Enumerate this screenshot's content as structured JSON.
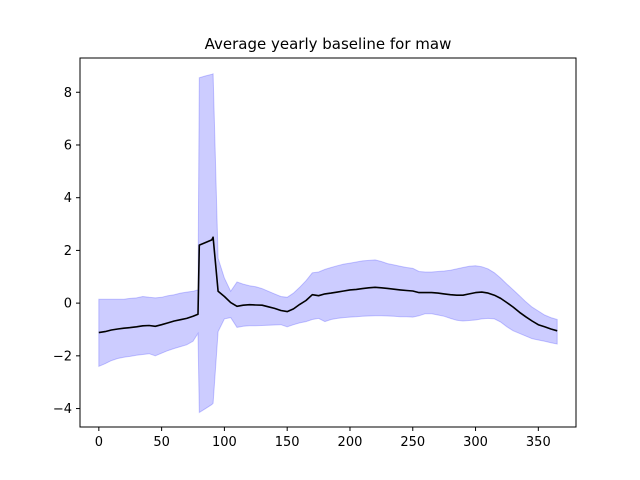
{
  "chart_data": {
    "type": "area",
    "title": "Average yearly baseline for maw",
    "xlabel": "",
    "ylabel": "",
    "xlim": [
      -15,
      380
    ],
    "ylim": [
      -4.7,
      9.3
    ],
    "xticks": [
      0,
      50,
      100,
      150,
      200,
      250,
      300,
      350
    ],
    "yticks": [
      -4,
      -2,
      0,
      2,
      4,
      6,
      8
    ],
    "grid": false,
    "legend": "none",
    "series": [
      {
        "kind": "line",
        "color": "#000000",
        "x": [
          0,
          5,
          10,
          15,
          20,
          25,
          30,
          35,
          40,
          45,
          50,
          55,
          60,
          65,
          70,
          75,
          79,
          80,
          85,
          90,
          91,
          95,
          100,
          105,
          110,
          115,
          120,
          125,
          130,
          135,
          140,
          145,
          150,
          155,
          160,
          165,
          170,
          175,
          180,
          185,
          190,
          195,
          200,
          205,
          210,
          215,
          220,
          225,
          230,
          235,
          240,
          245,
          250,
          255,
          260,
          265,
          270,
          275,
          280,
          285,
          290,
          295,
          300,
          305,
          310,
          315,
          320,
          325,
          330,
          335,
          340,
          345,
          350,
          355,
          360,
          365
        ],
        "y": [
          -1.12,
          -1.08,
          -1.02,
          -0.98,
          -0.95,
          -0.93,
          -0.9,
          -0.86,
          -0.85,
          -0.88,
          -0.82,
          -0.75,
          -0.68,
          -0.63,
          -0.58,
          -0.5,
          -0.42,
          2.2,
          2.3,
          2.4,
          2.5,
          0.45,
          0.25,
          0.02,
          -0.12,
          -0.08,
          -0.06,
          -0.07,
          -0.08,
          -0.14,
          -0.2,
          -0.28,
          -0.32,
          -0.22,
          -0.05,
          0.1,
          0.32,
          0.28,
          0.35,
          0.38,
          0.42,
          0.46,
          0.5,
          0.52,
          0.55,
          0.58,
          0.6,
          0.58,
          0.56,
          0.53,
          0.5,
          0.48,
          0.46,
          0.4,
          0.4,
          0.4,
          0.38,
          0.35,
          0.32,
          0.3,
          0.3,
          0.35,
          0.4,
          0.42,
          0.38,
          0.3,
          0.18,
          0.02,
          -0.15,
          -0.35,
          -0.52,
          -0.68,
          -0.82,
          -0.9,
          -0.98,
          -1.05
        ]
      },
      {
        "kind": "band",
        "color": "#0000ff",
        "opacity": 0.2,
        "x": [
          0,
          5,
          10,
          15,
          20,
          25,
          30,
          35,
          40,
          45,
          50,
          55,
          60,
          65,
          70,
          75,
          79,
          80,
          85,
          90,
          91,
          95,
          100,
          105,
          110,
          115,
          120,
          125,
          130,
          135,
          140,
          145,
          150,
          155,
          160,
          165,
          170,
          175,
          180,
          185,
          190,
          195,
          200,
          205,
          210,
          215,
          220,
          225,
          230,
          235,
          240,
          245,
          250,
          255,
          260,
          265,
          270,
          275,
          280,
          285,
          290,
          295,
          300,
          305,
          310,
          315,
          320,
          325,
          330,
          335,
          340,
          345,
          350,
          355,
          360,
          365
        ],
        "upper": [
          0.15,
          0.15,
          0.15,
          0.15,
          0.15,
          0.18,
          0.2,
          0.25,
          0.22,
          0.2,
          0.22,
          0.28,
          0.32,
          0.38,
          0.42,
          0.45,
          0.5,
          8.55,
          8.62,
          8.68,
          8.7,
          1.7,
          0.95,
          0.45,
          0.8,
          0.72,
          0.66,
          0.62,
          0.55,
          0.45,
          0.35,
          0.25,
          0.22,
          0.38,
          0.6,
          0.85,
          1.15,
          1.18,
          1.28,
          1.35,
          1.42,
          1.48,
          1.52,
          1.56,
          1.6,
          1.62,
          1.64,
          1.58,
          1.5,
          1.45,
          1.4,
          1.35,
          1.32,
          1.2,
          1.18,
          1.18,
          1.2,
          1.22,
          1.25,
          1.3,
          1.35,
          1.4,
          1.42,
          1.38,
          1.3,
          1.15,
          0.95,
          0.72,
          0.5,
          0.28,
          0.05,
          -0.15,
          -0.3,
          -0.45,
          -0.55,
          -0.62
        ],
        "lower": [
          -2.4,
          -2.3,
          -2.18,
          -2.1,
          -2.05,
          -2.02,
          -1.98,
          -1.95,
          -1.92,
          -2.0,
          -1.9,
          -1.8,
          -1.72,
          -1.65,
          -1.58,
          -1.45,
          -1.15,
          -4.15,
          -4.0,
          -3.85,
          -3.8,
          -1.08,
          -0.6,
          -0.55,
          -0.92,
          -0.88,
          -0.86,
          -0.86,
          -0.85,
          -0.84,
          -0.83,
          -0.82,
          -0.9,
          -0.82,
          -0.75,
          -0.7,
          -0.62,
          -0.58,
          -0.7,
          -0.62,
          -0.58,
          -0.55,
          -0.53,
          -0.52,
          -0.5,
          -0.49,
          -0.48,
          -0.48,
          -0.49,
          -0.5,
          -0.52,
          -0.52,
          -0.53,
          -0.48,
          -0.4,
          -0.4,
          -0.45,
          -0.5,
          -0.58,
          -0.65,
          -0.68,
          -0.66,
          -0.64,
          -0.6,
          -0.58,
          -0.6,
          -0.72,
          -0.9,
          -1.05,
          -1.15,
          -1.25,
          -1.35,
          -1.4,
          -1.45,
          -1.5,
          -1.55
        ]
      }
    ]
  }
}
